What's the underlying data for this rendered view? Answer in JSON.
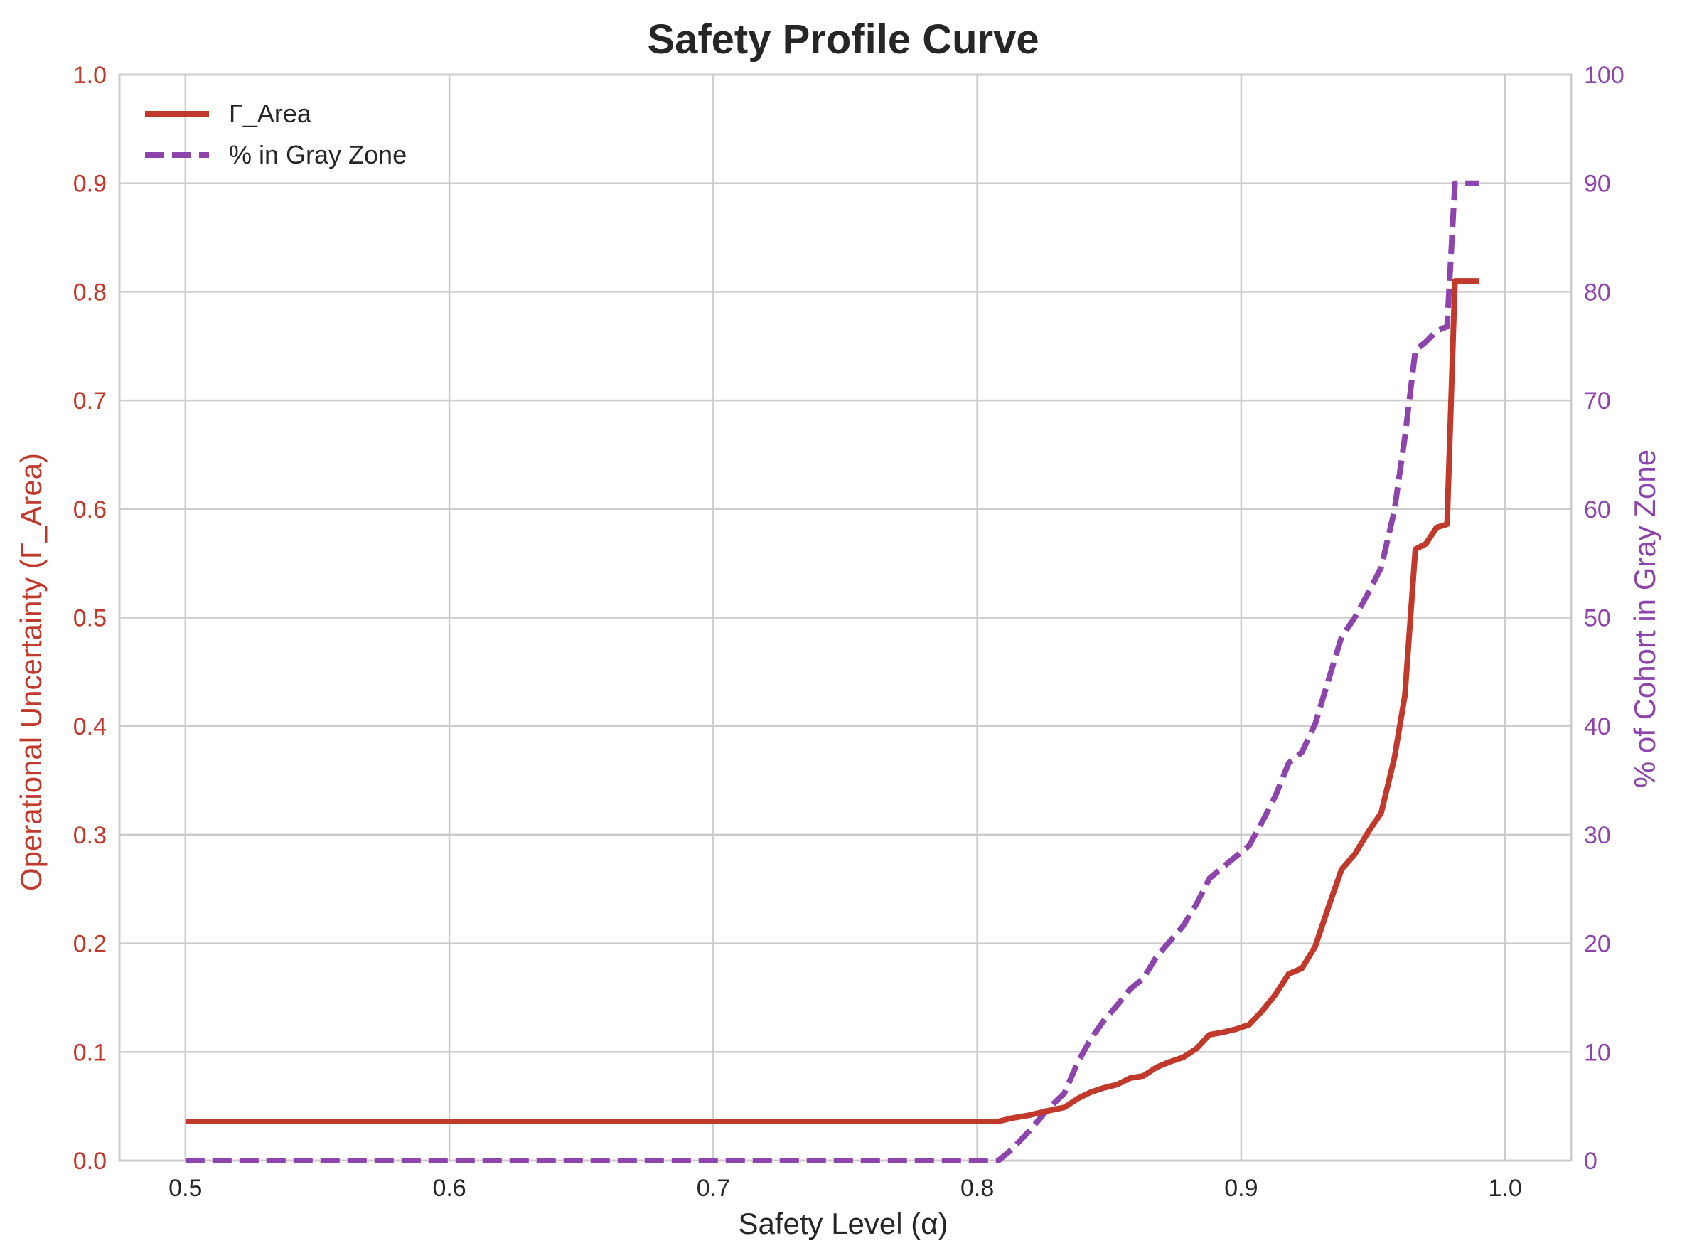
{
  "chart_data": {
    "type": "line",
    "title": "Safety Profile Curve",
    "xlabel": "Safety Level (α)",
    "ylabel": "Operational Uncertainty (Γ_Area)",
    "y2label": "% of Cohort in Gray Zone",
    "xlim": [
      0.475,
      1.025
    ],
    "ylim": [
      0.0,
      1.0
    ],
    "y2lim": [
      0,
      100
    ],
    "x_ticks": [
      "0.5",
      "0.6",
      "0.7",
      "0.8",
      "0.9",
      "1.0"
    ],
    "y_ticks": [
      "0.0",
      "0.1",
      "0.2",
      "0.3",
      "0.4",
      "0.5",
      "0.6",
      "0.7",
      "0.8",
      "0.9",
      "1.0"
    ],
    "y2_ticks": [
      "0",
      "10",
      "20",
      "30",
      "40",
      "50",
      "60",
      "70",
      "80",
      "90",
      "100"
    ],
    "grid": true,
    "legend_position": "top-left",
    "colors": {
      "area": "#c0392b",
      "gray": "#8e44ad",
      "grid": "#cccccc",
      "text": "#262626"
    },
    "series": [
      {
        "name": "Γ_Area",
        "axis": "left",
        "style": "solid",
        "points": [
          [
            0.5,
            0.036
          ],
          [
            0.6,
            0.036
          ],
          [
            0.7,
            0.036
          ],
          [
            0.808,
            0.036
          ],
          [
            0.813,
            0.039
          ],
          [
            0.82,
            0.042
          ],
          [
            0.827,
            0.046
          ],
          [
            0.833,
            0.049
          ],
          [
            0.838,
            0.057
          ],
          [
            0.843,
            0.063
          ],
          [
            0.848,
            0.067
          ],
          [
            0.853,
            0.07
          ],
          [
            0.858,
            0.076
          ],
          [
            0.863,
            0.078
          ],
          [
            0.868,
            0.086
          ],
          [
            0.873,
            0.091
          ],
          [
            0.878,
            0.095
          ],
          [
            0.883,
            0.103
          ],
          [
            0.888,
            0.116
          ],
          [
            0.893,
            0.118
          ],
          [
            0.898,
            0.121
          ],
          [
            0.903,
            0.125
          ],
          [
            0.908,
            0.138
          ],
          [
            0.913,
            0.153
          ],
          [
            0.918,
            0.172
          ],
          [
            0.923,
            0.177
          ],
          [
            0.928,
            0.197
          ],
          [
            0.933,
            0.233
          ],
          [
            0.938,
            0.268
          ],
          [
            0.943,
            0.282
          ],
          [
            0.948,
            0.302
          ],
          [
            0.953,
            0.32
          ],
          [
            0.958,
            0.37
          ],
          [
            0.962,
            0.428
          ],
          [
            0.966,
            0.563
          ],
          [
            0.97,
            0.568
          ],
          [
            0.974,
            0.583
          ],
          [
            0.978,
            0.586
          ],
          [
            0.981,
            0.81
          ],
          [
            0.985,
            0.81
          ],
          [
            0.99,
            0.81
          ]
        ]
      },
      {
        "name": "% in Gray Zone",
        "axis": "right",
        "style": "dashed",
        "points": [
          [
            0.5,
            0.0
          ],
          [
            0.6,
            0.0
          ],
          [
            0.7,
            0.0
          ],
          [
            0.808,
            0.0
          ],
          [
            0.813,
            1.0
          ],
          [
            0.82,
            2.8
          ],
          [
            0.827,
            4.8
          ],
          [
            0.833,
            6.2
          ],
          [
            0.838,
            9.0
          ],
          [
            0.843,
            11.2
          ],
          [
            0.848,
            12.9
          ],
          [
            0.853,
            14.3
          ],
          [
            0.858,
            15.8
          ],
          [
            0.863,
            16.8
          ],
          [
            0.868,
            18.8
          ],
          [
            0.873,
            20.2
          ],
          [
            0.878,
            21.6
          ],
          [
            0.883,
            23.6
          ],
          [
            0.888,
            26.0
          ],
          [
            0.893,
            27.0
          ],
          [
            0.898,
            28.0
          ],
          [
            0.903,
            29.0
          ],
          [
            0.908,
            31.2
          ],
          [
            0.913,
            33.6
          ],
          [
            0.918,
            36.6
          ],
          [
            0.923,
            37.6
          ],
          [
            0.928,
            40.2
          ],
          [
            0.933,
            44.2
          ],
          [
            0.938,
            48.2
          ],
          [
            0.943,
            50.0
          ],
          [
            0.948,
            52.2
          ],
          [
            0.953,
            54.6
          ],
          [
            0.958,
            59.8
          ],
          [
            0.962,
            66.6
          ],
          [
            0.966,
            74.6
          ],
          [
            0.97,
            75.4
          ],
          [
            0.974,
            76.4
          ],
          [
            0.978,
            76.8
          ],
          [
            0.981,
            90.0
          ],
          [
            0.985,
            90.0
          ],
          [
            0.99,
            90.0
          ]
        ]
      }
    ]
  }
}
